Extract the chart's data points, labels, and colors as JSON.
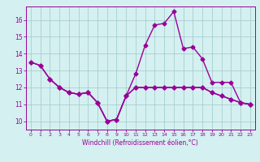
{
  "line1_x": [
    0,
    1,
    2,
    3,
    4,
    5,
    6,
    7,
    8,
    9,
    10,
    11,
    12,
    13,
    14,
    15,
    16,
    17,
    18,
    19,
    20,
    21,
    22,
    23
  ],
  "line1_y": [
    13.5,
    13.3,
    12.5,
    12.0,
    11.7,
    11.6,
    11.7,
    11.1,
    10.0,
    10.1,
    11.5,
    12.8,
    14.5,
    15.7,
    15.8,
    16.5,
    14.3,
    14.4,
    13.7,
    12.3,
    12.3,
    12.3,
    11.1,
    11.0
  ],
  "line2_x": [
    2,
    3,
    4,
    5,
    6,
    7,
    8,
    9,
    10,
    11,
    12,
    13,
    14,
    15,
    16,
    17,
    18,
    19,
    20,
    21,
    22,
    23
  ],
  "line2_y": [
    12.5,
    12.0,
    11.7,
    11.6,
    11.7,
    11.1,
    10.0,
    10.1,
    11.5,
    12.0,
    12.0,
    12.0,
    12.0,
    12.0,
    12.0,
    12.0,
    12.0,
    11.7,
    11.5,
    11.3,
    11.1,
    11.0
  ],
  "line3_x": [
    0,
    1,
    2,
    3,
    4,
    5,
    6,
    7,
    8,
    9,
    10,
    11,
    12,
    13,
    14,
    15,
    16,
    17,
    18,
    19,
    20,
    21,
    22,
    23
  ],
  "line3_y": [
    13.5,
    13.3,
    12.5,
    12.0,
    11.7,
    11.6,
    11.7,
    11.1,
    10.0,
    10.1,
    11.5,
    12.0,
    12.0,
    12.0,
    12.0,
    12.0,
    12.0,
    12.0,
    12.0,
    11.7,
    11.5,
    11.3,
    11.1,
    11.0
  ],
  "color": "#990099",
  "bg_color": "#d4f0f0",
  "grid_color": "#a0c8c8",
  "xlim": [
    -0.5,
    23.5
  ],
  "ylim": [
    9.5,
    16.8
  ],
  "yticks": [
    10,
    11,
    12,
    13,
    14,
    15,
    16
  ],
  "xticks": [
    0,
    1,
    2,
    3,
    4,
    5,
    6,
    7,
    8,
    9,
    10,
    11,
    12,
    13,
    14,
    15,
    16,
    17,
    18,
    19,
    20,
    21,
    22,
    23
  ],
  "xlabel": "Windchill (Refroidissement éolien,°C)",
  "marker": "D",
  "markersize": 2.5,
  "linewidth": 1.0
}
